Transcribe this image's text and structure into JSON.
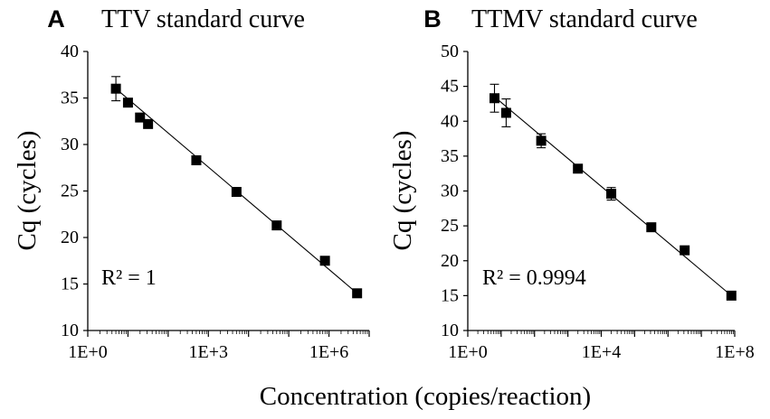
{
  "figure": {
    "shared_xlabel": "Concentration (copies/reaction)"
  },
  "chart_data": [
    {
      "type": "scatter",
      "panel_letter": "A",
      "title": "TTV standard curve",
      "xlabel": "",
      "ylabel": "Cq (cycles)",
      "xscale": "log",
      "xlim_log10": [
        0,
        7
      ],
      "x_tick_labels": [
        {
          "log10": 0,
          "label": "1E+0"
        },
        {
          "log10": 3,
          "label": "1E+3"
        },
        {
          "log10": 6,
          "label": "1E+6"
        }
      ],
      "ylim": [
        10,
        40
      ],
      "y_ticks": [
        10,
        15,
        20,
        25,
        30,
        35,
        40
      ],
      "r_squared_label": "R² = 1",
      "points": [
        {
          "log10x": 0.7,
          "y": 36.0,
          "err": 1.3
        },
        {
          "log10x": 1.0,
          "y": 34.5,
          "err": 0.3
        },
        {
          "log10x": 1.3,
          "y": 32.9,
          "err": 0.35
        },
        {
          "log10x": 1.5,
          "y": 32.2,
          "err": 0.3
        },
        {
          "log10x": 2.7,
          "y": 28.3,
          "err": 0.3
        },
        {
          "log10x": 3.7,
          "y": 24.9,
          "err": 0.25
        },
        {
          "log10x": 4.7,
          "y": 21.3,
          "err": 0.25
        },
        {
          "log10x": 5.9,
          "y": 17.5,
          "err": 0.2
        },
        {
          "log10x": 6.7,
          "y": 14.0,
          "err": 0.2
        }
      ],
      "fit": {
        "x0": 0.7,
        "y0": 36.0,
        "x1": 6.7,
        "y1": 14.0
      }
    },
    {
      "type": "scatter",
      "panel_letter": "B",
      "title": "TTMV standard curve",
      "xlabel": "",
      "ylabel": "Cq (cycles)",
      "xscale": "log",
      "xlim_log10": [
        0,
        8
      ],
      "x_tick_labels": [
        {
          "log10": 0,
          "label": "1E+0"
        },
        {
          "log10": 4,
          "label": "1E+4"
        },
        {
          "log10": 8,
          "label": "1E+8"
        }
      ],
      "ylim": [
        10,
        50
      ],
      "y_ticks": [
        10,
        15,
        20,
        25,
        30,
        35,
        40,
        45,
        50
      ],
      "r_squared_label": "R² = 0.9994",
      "points": [
        {
          "log10x": 0.8,
          "y": 43.3,
          "err": 2.0
        },
        {
          "log10x": 1.15,
          "y": 41.2,
          "err": 2.0
        },
        {
          "log10x": 2.2,
          "y": 37.2,
          "err": 1.0
        },
        {
          "log10x": 3.3,
          "y": 33.2,
          "err": 0.4
        },
        {
          "log10x": 4.3,
          "y": 29.6,
          "err": 0.9
        },
        {
          "log10x": 5.5,
          "y": 24.8,
          "err": 0.6
        },
        {
          "log10x": 6.5,
          "y": 21.5,
          "err": 0.3
        },
        {
          "log10x": 7.9,
          "y": 15.0,
          "err": 0.3
        }
      ],
      "fit": {
        "x0": 0.8,
        "y0": 43.5,
        "x1": 7.9,
        "y1": 15.0
      }
    }
  ]
}
